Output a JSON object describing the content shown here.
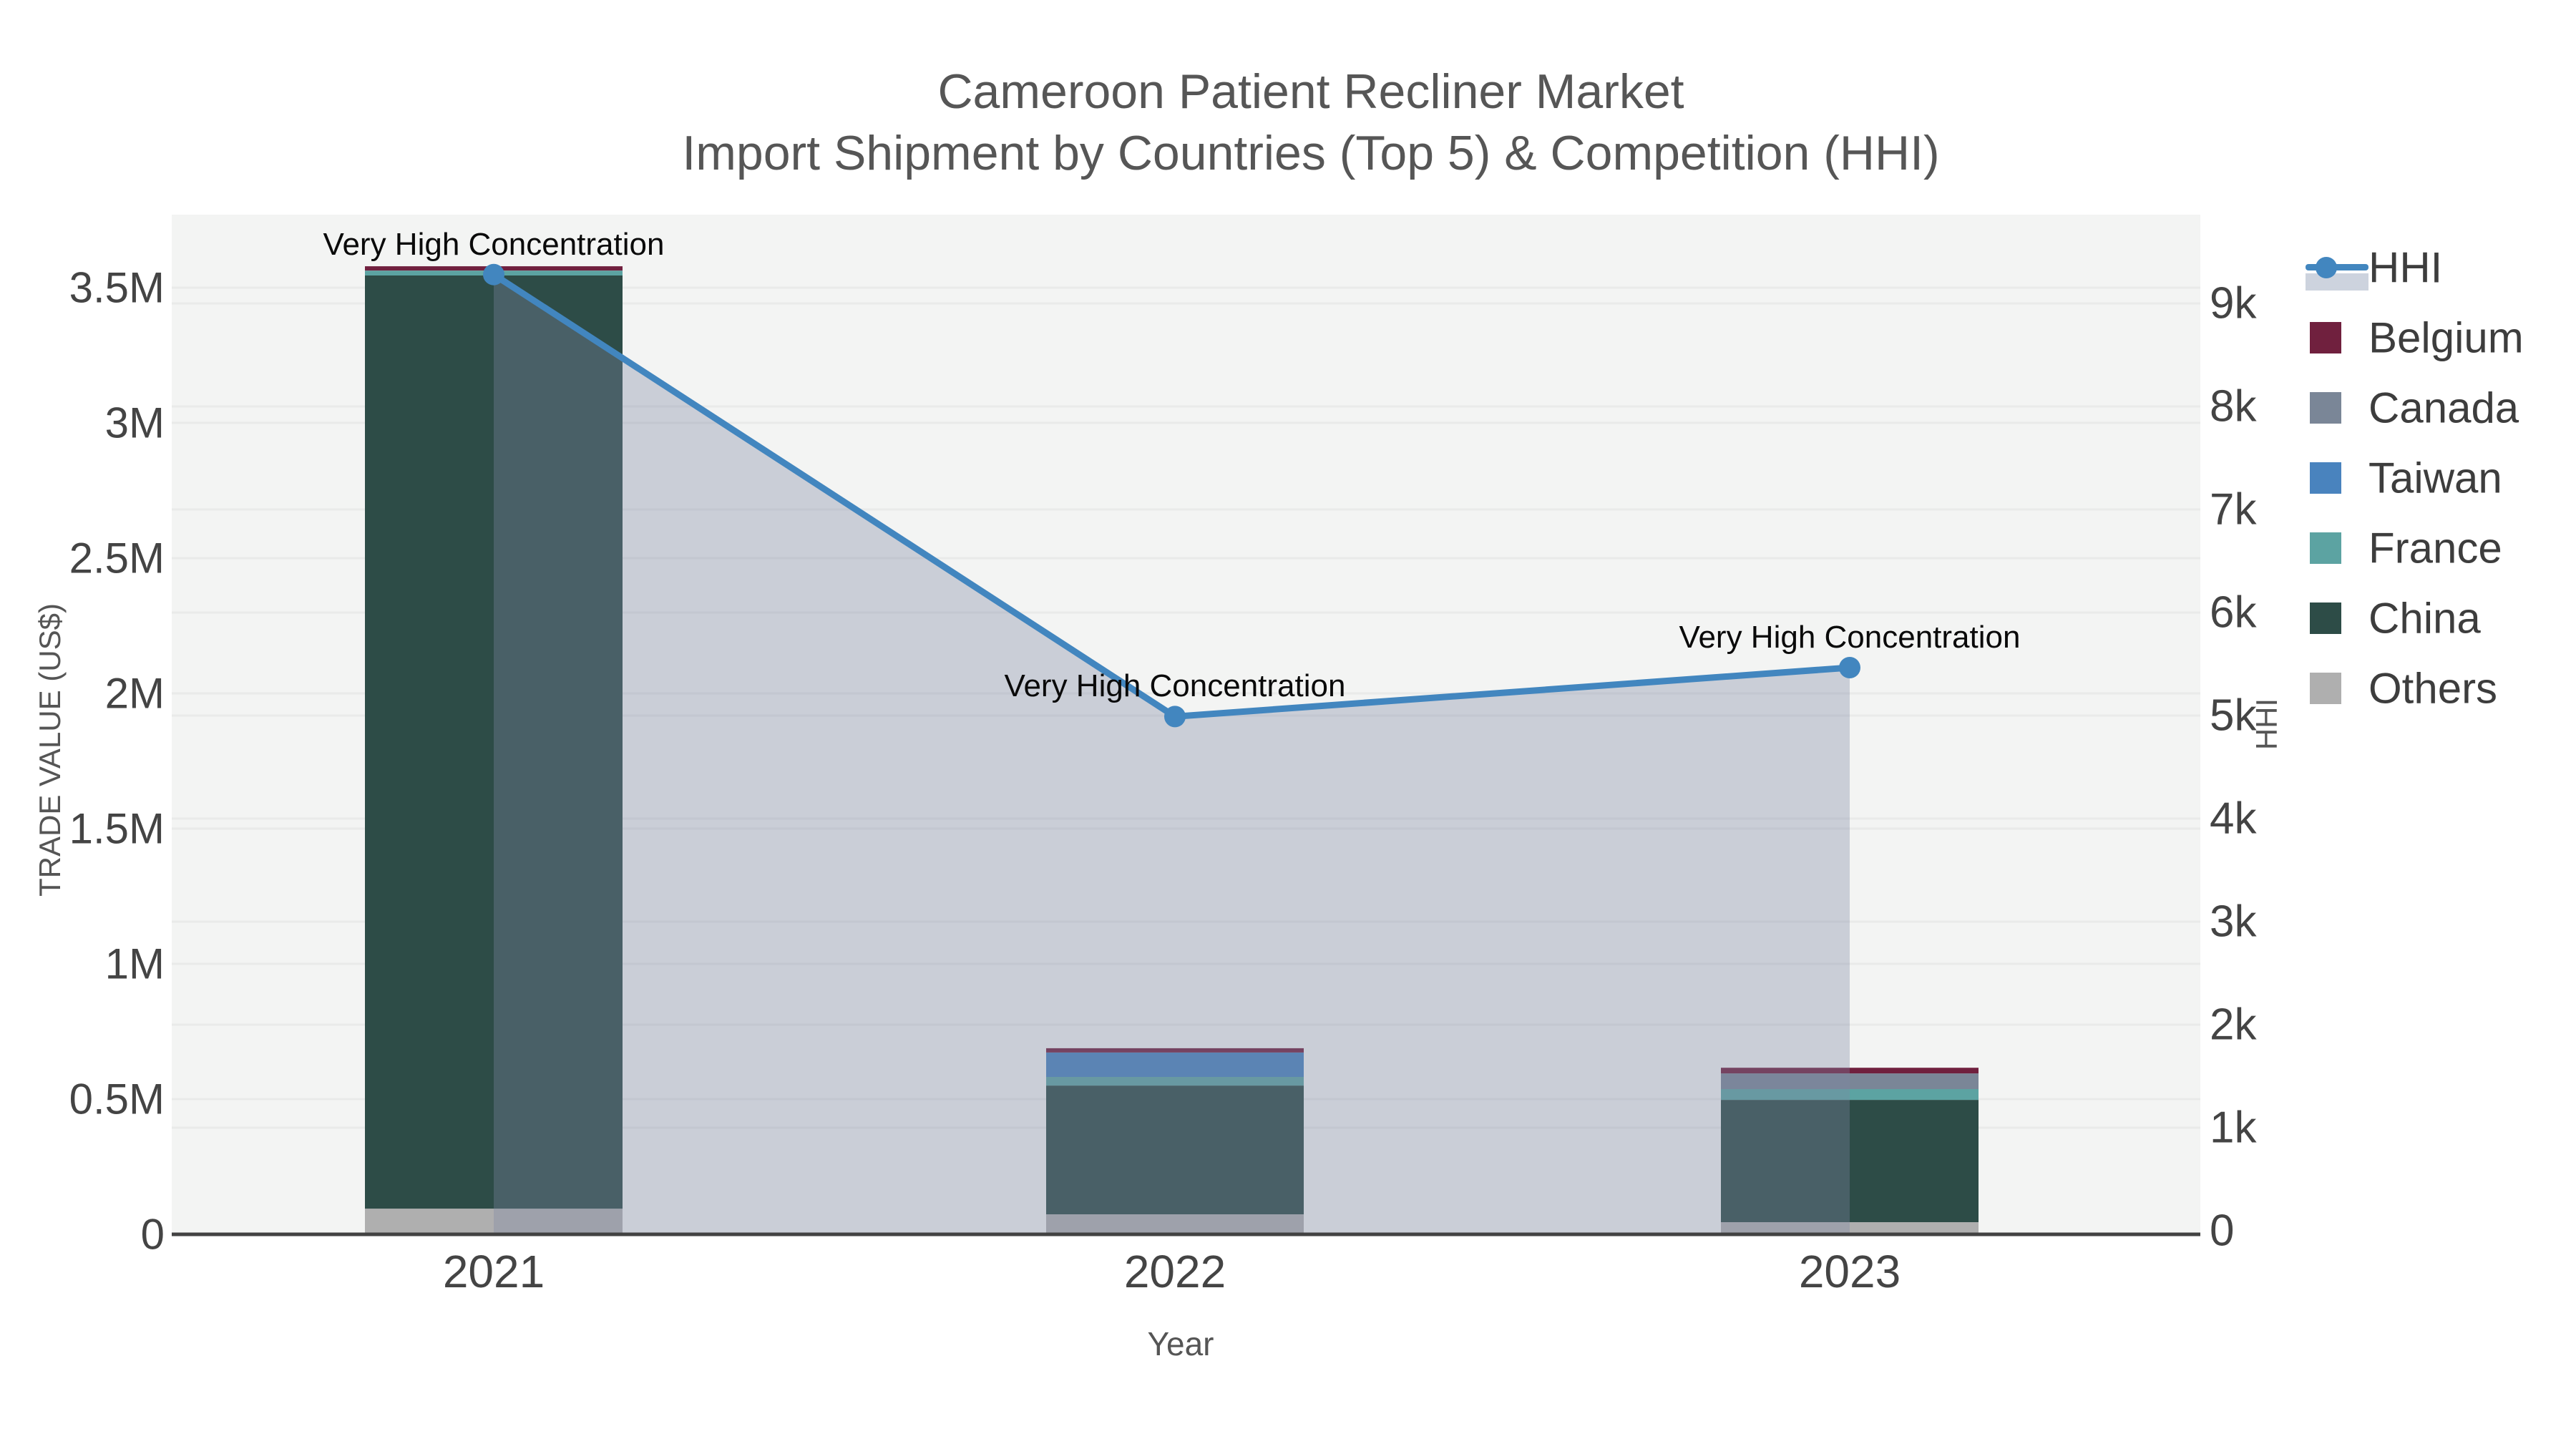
{
  "title": {
    "line1": "Cameroon Patient Recliner Market",
    "line2": "Import Shipment by Countries (Top 5) & Competition (HHI)"
  },
  "axes": {
    "left": {
      "title": "TRADE VALUE (US$)",
      "ticks": [
        [
          "0",
          0
        ],
        [
          "0.5M",
          500000
        ],
        [
          "1M",
          1000000
        ],
        [
          "1.5M",
          1500000
        ],
        [
          "2M",
          2000000
        ],
        [
          "2.5M",
          2500000
        ],
        [
          "3M",
          3000000
        ],
        [
          "3.5M",
          3500000
        ]
      ]
    },
    "right": {
      "title": "HHI",
      "ticks": [
        [
          "0",
          0
        ],
        [
          "1k",
          1000
        ],
        [
          "2k",
          2000
        ],
        [
          "3k",
          3000
        ],
        [
          "4k",
          4000
        ],
        [
          "5k",
          5000
        ],
        [
          "6k",
          6000
        ],
        [
          "7k",
          7000
        ],
        [
          "8k",
          8000
        ],
        [
          "9k",
          9000
        ]
      ]
    },
    "x": {
      "title": "Year",
      "categories": [
        "2021",
        "2022",
        "2023"
      ]
    }
  },
  "legend": [
    "HHI",
    "Belgium",
    "Canada",
    "Taiwan",
    "France",
    "China",
    "Others"
  ],
  "annotations": [
    {
      "text": "Very High Concentration"
    },
    {
      "text": "Very High Concentration"
    },
    {
      "text": "Very High Concentration"
    }
  ],
  "chart_data": {
    "type": "combo-stacked-bar-line",
    "categories": [
      "2021",
      "2022",
      "2023"
    ],
    "bar_series": [
      {
        "name": "Belgium",
        "color": "#70203E",
        "values": [
          16000,
          16000,
          21000
        ]
      },
      {
        "name": "Canada",
        "color": "#7A8697",
        "values": [
          0,
          0,
          58000
        ]
      },
      {
        "name": "Taiwan",
        "color": "#4983BE",
        "values": [
          0,
          90000,
          0
        ]
      },
      {
        "name": "France",
        "color": "#5CA3A2",
        "values": [
          18000,
          32000,
          40000
        ]
      },
      {
        "name": "China",
        "color": "#2D4C47",
        "values": [
          3450000,
          476000,
          452000
        ]
      },
      {
        "name": "Others",
        "color": "#AFAFAF",
        "values": [
          95000,
          74000,
          45000
        ]
      }
    ],
    "bar_totals": [
      3579000,
      688000,
      616000
    ],
    "line_series": {
      "name": "HHI",
      "color": "#4286BF",
      "area_color": "rgba(127,135,162,0.35)",
      "values": [
        9280,
        4990,
        5465
      ]
    },
    "stack_order_bottom_to_top": [
      "Others",
      "China",
      "France",
      "Taiwan",
      "Canada",
      "Belgium"
    ],
    "left_axis": {
      "label": "TRADE VALUE (US$)",
      "range": [
        0,
        3770000
      ],
      "tick_step": 500000,
      "grid": true
    },
    "right_axis": {
      "label": "HHI",
      "range": [
        0,
        9860
      ],
      "tick_step": 1000,
      "grid": true
    },
    "xlabel": "Year",
    "legend_position": "right",
    "plot_bg": "#f3f4f3",
    "annotation_text": "Very High Concentration"
  }
}
